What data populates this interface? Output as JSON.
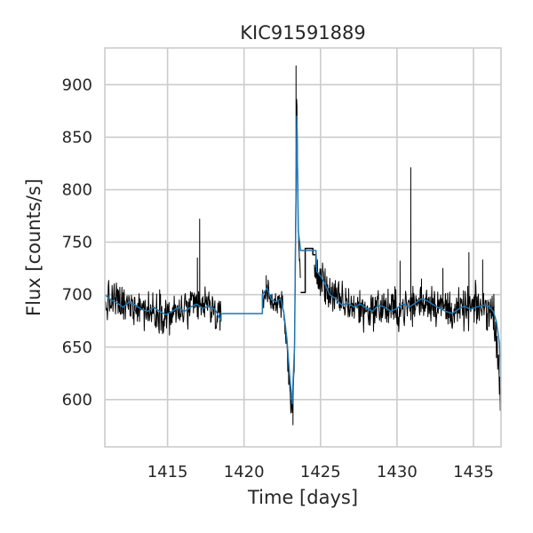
{
  "chart_data": {
    "type": "line",
    "title": "KIC91591889",
    "xlabel": "Time [days]",
    "ylabel": "Flux [counts/s]",
    "xlim": [
      1410.9,
      1436.8
    ],
    "ylim": [
      555,
      935
    ],
    "xticks": [
      1415,
      1420,
      1425,
      1430,
      1435
    ],
    "yticks": [
      600,
      650,
      700,
      750,
      800,
      850,
      900
    ],
    "grid": true,
    "series": [
      {
        "color": "#000000",
        "baseline": [
          [
            1410.9,
            690
          ],
          [
            1411.5,
            695
          ],
          [
            1412.2,
            688
          ],
          [
            1413.0,
            692
          ],
          [
            1413.8,
            683
          ],
          [
            1414.5,
            686
          ],
          [
            1415.2,
            680
          ],
          [
            1416.0,
            685
          ],
          [
            1416.8,
            688
          ],
          [
            1417.5,
            690
          ],
          [
            1418.0,
            686
          ],
          [
            1418.5,
            672
          ]
        ],
        "noise": 14,
        "step": 0.028,
        "spikes": [
          [
            1417.1,
            772
          ],
          [
            1416.95,
            735
          ]
        ]
      },
      {
        "color": "#000000",
        "baseline": [
          [
            1421.2,
            695
          ],
          [
            1421.5,
            705
          ],
          [
            1421.9,
            690
          ],
          [
            1422.3,
            697
          ],
          [
            1422.6,
            680
          ],
          [
            1422.8,
            650
          ],
          [
            1423.0,
            612
          ],
          [
            1423.15,
            585
          ],
          [
            1423.3,
            640
          ],
          [
            1423.45,
            900
          ],
          [
            1423.55,
            760
          ],
          [
            1423.7,
            710
          ]
        ],
        "noise": 9,
        "step": 0.02,
        "spikes": [
          [
            1423.4,
            918
          ],
          [
            1423.2,
            576
          ],
          [
            1421.45,
            718
          ]
        ]
      },
      {
        "color": "#000000",
        "baseline": [
          [
            1424.6,
            720
          ],
          [
            1425.0,
            715
          ],
          [
            1425.5,
            705
          ],
          [
            1426.0,
            695
          ],
          [
            1427.0,
            690
          ],
          [
            1428.0,
            685
          ],
          [
            1429.0,
            688
          ],
          [
            1430.0,
            685
          ],
          [
            1431.0,
            690
          ],
          [
            1432.0,
            695
          ],
          [
            1433.0,
            688
          ],
          [
            1434.0,
            684
          ],
          [
            1435.0,
            688
          ],
          [
            1436.0,
            688
          ],
          [
            1436.4,
            676
          ],
          [
            1436.6,
            645
          ],
          [
            1436.8,
            600
          ]
        ],
        "noise": 14,
        "step": 0.028,
        "spikes": [
          [
            1430.9,
            821
          ],
          [
            1430.2,
            732
          ],
          [
            1433.0,
            725
          ],
          [
            1434.7,
            740
          ],
          [
            1435.6,
            733
          ],
          [
            1431.6,
            715
          ]
        ]
      },
      {
        "color": "#000000",
        "polyline": [
          [
            1423.7,
            702
          ],
          [
            1424.0,
            702
          ],
          [
            1424.0,
            744
          ],
          [
            1424.5,
            744
          ],
          [
            1424.5,
            738
          ],
          [
            1424.7,
            738
          ],
          [
            1424.7,
            722
          ]
        ]
      },
      {
        "color": "#1f77b4",
        "polyline": [
          [
            1410.9,
            700
          ],
          [
            1411.3,
            695
          ],
          [
            1411.7,
            692
          ],
          [
            1412.1,
            688
          ],
          [
            1412.5,
            693
          ],
          [
            1412.9,
            690
          ],
          [
            1413.3,
            686
          ],
          [
            1413.7,
            684
          ],
          [
            1414.1,
            688
          ],
          [
            1414.5,
            684
          ],
          [
            1414.9,
            681
          ],
          [
            1415.3,
            684
          ],
          [
            1415.7,
            688
          ],
          [
            1416.1,
            684
          ],
          [
            1416.5,
            688
          ],
          [
            1416.9,
            691
          ],
          [
            1417.3,
            687
          ],
          [
            1417.7,
            689
          ],
          [
            1418.1,
            686
          ],
          [
            1418.5,
            675
          ],
          [
            1418.5,
            682
          ],
          [
            1421.2,
            682
          ],
          [
            1421.2,
            700
          ],
          [
            1421.5,
            706
          ],
          [
            1421.8,
            695
          ],
          [
            1422.1,
            693
          ],
          [
            1422.4,
            696
          ],
          [
            1422.6,
            683
          ],
          [
            1422.8,
            658
          ],
          [
            1423.0,
            620
          ],
          [
            1423.15,
            596
          ],
          [
            1423.3,
            650
          ],
          [
            1423.45,
            870
          ],
          [
            1423.55,
            760
          ],
          [
            1423.7,
            742
          ],
          [
            1424.7,
            742
          ],
          [
            1424.75,
            722
          ],
          [
            1425.0,
            718
          ],
          [
            1425.3,
            710
          ],
          [
            1425.6,
            700
          ],
          [
            1426.0,
            696
          ],
          [
            1426.4,
            690
          ],
          [
            1426.8,
            692
          ],
          [
            1427.2,
            688
          ],
          [
            1427.6,
            691
          ],
          [
            1428.0,
            687
          ],
          [
            1428.4,
            684
          ],
          [
            1428.8,
            690
          ],
          [
            1429.2,
            688
          ],
          [
            1429.6,
            684
          ],
          [
            1430.0,
            687
          ],
          [
            1430.4,
            691
          ],
          [
            1430.8,
            688
          ],
          [
            1431.2,
            692
          ],
          [
            1431.6,
            696
          ],
          [
            1432.0,
            694
          ],
          [
            1432.4,
            690
          ],
          [
            1432.8,
            687
          ],
          [
            1433.2,
            684
          ],
          [
            1433.6,
            682
          ],
          [
            1434.0,
            686
          ],
          [
            1434.4,
            689
          ],
          [
            1434.8,
            686
          ],
          [
            1435.2,
            688
          ],
          [
            1435.6,
            690
          ],
          [
            1436.0,
            689
          ],
          [
            1436.3,
            684
          ],
          [
            1436.5,
            674
          ],
          [
            1436.7,
            653
          ],
          [
            1436.8,
            615
          ]
        ]
      }
    ]
  }
}
